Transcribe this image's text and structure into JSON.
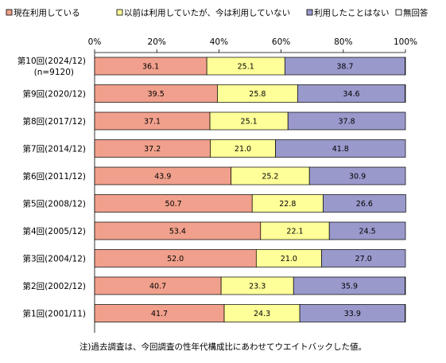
{
  "chart_data": {
    "type": "bar",
    "orientation": "horizontal",
    "stacked": true,
    "categories": [
      [
        "第10回(2024/12)",
        "(n=9120)"
      ],
      [
        "第9回(2020/12)"
      ],
      [
        "第8回(2017/12)"
      ],
      [
        "第7回(2014/12)"
      ],
      [
        "第6回(2011/12)"
      ],
      [
        "第5回(2008/12)"
      ],
      [
        "第4回(2005/12)"
      ],
      [
        "第3回(2004/12)"
      ],
      [
        "第2回(2002/12)"
      ],
      [
        "第1回(2001/11)"
      ]
    ],
    "series": [
      {
        "name": "現在利用している",
        "color": "#f0a08c",
        "values": [
          36.1,
          39.5,
          37.1,
          37.2,
          43.9,
          50.7,
          53.4,
          52.0,
          40.7,
          41.7
        ]
      },
      {
        "name": "以前は利用していたが、今は利用していない",
        "color": "#ffff99",
        "values": [
          25.1,
          25.8,
          25.1,
          21.0,
          25.2,
          22.8,
          22.1,
          21.0,
          23.3,
          24.3
        ]
      },
      {
        "name": "利用したことはない",
        "color": "#9999cc",
        "values": [
          38.7,
          34.6,
          37.8,
          41.8,
          30.9,
          26.6,
          24.5,
          27.0,
          35.9,
          33.9
        ]
      },
      {
        "name": "無回答",
        "color": "#ffffff",
        "values": [
          0.1,
          0.1,
          0.0,
          0.0,
          0.0,
          0.0,
          0.0,
          0.0,
          0.1,
          0.1
        ]
      }
    ],
    "value_labels": [
      [
        "36.1",
        "25.1",
        "38.7"
      ],
      [
        "39.5",
        "25.8",
        "34.6"
      ],
      [
        "37.1",
        "25.1",
        "37.8"
      ],
      [
        "37.2",
        "21.0",
        "41.8"
      ],
      [
        "43.9",
        "25.2",
        "30.9"
      ],
      [
        "50.7",
        "22.8",
        "26.6"
      ],
      [
        "53.4",
        "22.1",
        "24.5"
      ],
      [
        "52.0",
        "21.0",
        "27.0"
      ],
      [
        "40.7",
        "23.3",
        "35.9"
      ],
      [
        "41.7",
        "24.3",
        "33.9"
      ]
    ],
    "x_ticks": [
      "0%",
      "20%",
      "40%",
      "60%",
      "80%",
      "100%"
    ],
    "xlim": [
      0,
      100
    ],
    "legend_position": "top",
    "grid": false
  },
  "note": "注)過去調査は、今回調査の性年代構成比にあわせてウエイトバックした値。"
}
